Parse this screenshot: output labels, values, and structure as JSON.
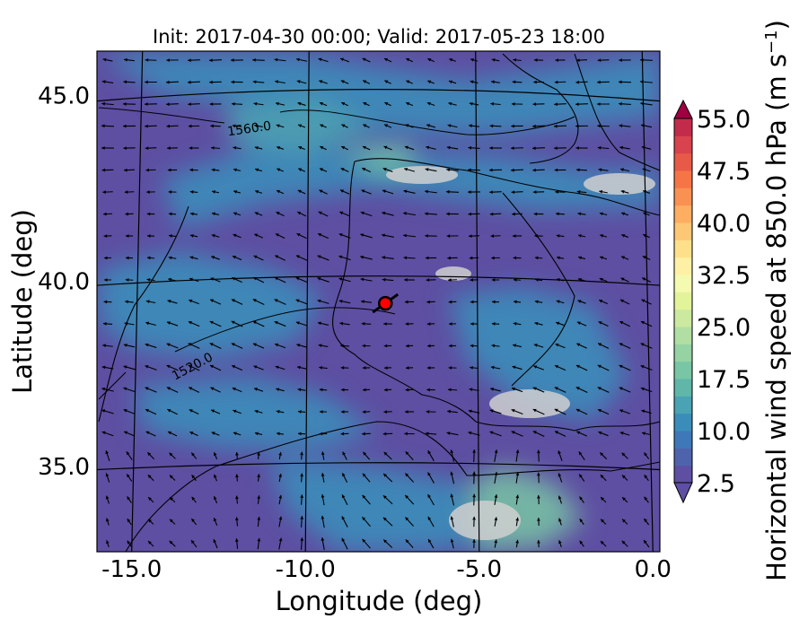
{
  "chart_data": {
    "type": "heatmap",
    "title": "Init: 2017-04-30 00:00; Valid: 2017-05-23 18:00",
    "xlabel": "Longitude (deg)",
    "ylabel": "Latitude (deg)",
    "xlim": [
      -16,
      0.2
    ],
    "ylim": [
      32.7,
      46.2
    ],
    "xticks": [
      "-15.0",
      "-10.0",
      "-5.0",
      "0.0"
    ],
    "xtick_values": [
      -15,
      -10,
      -5,
      0
    ],
    "yticks": [
      "35.0",
      "40.0",
      "45.0"
    ],
    "ytick_values": [
      35,
      40,
      45
    ],
    "colorbar": {
      "label": "Horizontal wind speed at 850.0 hPa (m s",
      "label_sup": "−1",
      "label_end": ")",
      "ticks": [
        "2.5",
        "10.0",
        "17.5",
        "25.0",
        "32.5",
        "40.0",
        "47.5",
        "55.0"
      ],
      "tick_values": [
        2.5,
        10,
        17.5,
        25,
        32.5,
        40,
        47.5,
        55
      ],
      "min": 2.5,
      "max": 55,
      "step": 2.5,
      "colors": [
        "#5e4fa2",
        "#4f63ad",
        "#3f78b8",
        "#3b8db9",
        "#4aa3b3",
        "#5fb6a9",
        "#78c6a5",
        "#95d3a4",
        "#b1dfa3",
        "#cbe99f",
        "#e3f39a",
        "#f4fab0",
        "#fef1a6",
        "#fee08b",
        "#fdc776",
        "#fdae61",
        "#f99153",
        "#f57547",
        "#e75a48",
        "#d8434e",
        "#c32b4b",
        "#9e0142"
      ]
    },
    "contours": [
      {
        "label": "1560.0",
        "lon": -11.6,
        "lat": 44.0
      },
      {
        "label": "1520.0",
        "lon": -13.2,
        "lat": 37.6
      }
    ],
    "marker": {
      "lon": -7.7,
      "lat": 39.4,
      "color": "#ff0000"
    },
    "grid": true
  }
}
